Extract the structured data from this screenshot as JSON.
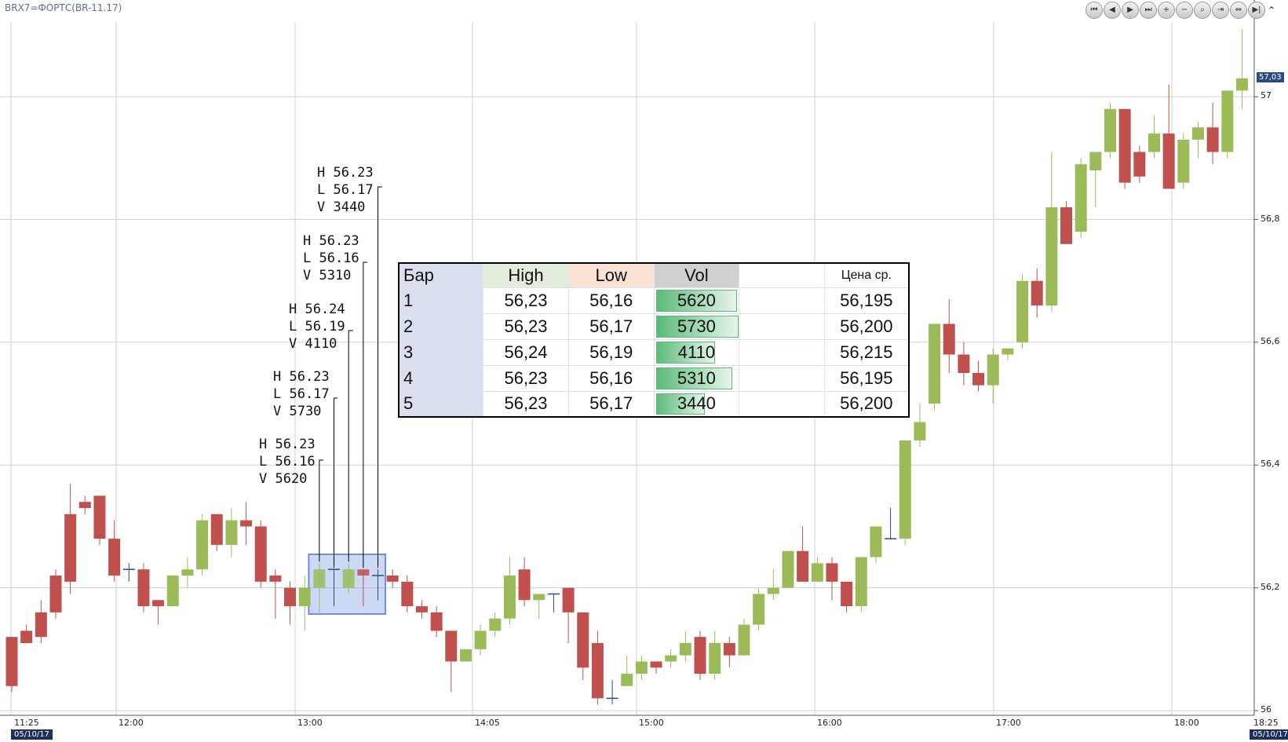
{
  "title": "BRX7=ФОРТС(BR-11.17)",
  "toolbar": {
    "buttons": [
      "first-icon",
      "prev-icon",
      "next-icon",
      "last-icon",
      "zoom-in-icon",
      "zoom-out-icon",
      "zoom-fit-icon",
      "compress-icon",
      "expand-icon",
      "end-icon"
    ],
    "collapse_glyph": "⌃"
  },
  "price_axis": [
    "57",
    "56,8",
    "56,6",
    "56,4",
    "56,2",
    "56"
  ],
  "current_price": "57,03",
  "time_axis": [
    "11:25",
    "12:00",
    "13:00",
    "14:05",
    "15:00",
    "16:00",
    "17:00",
    "18:00",
    "18:25"
  ],
  "date_left": "05/10/17",
  "date_right": "05/10/17",
  "annotations": [
    {
      "h": "H 56.23",
      "l": "L 56.16",
      "v": "V 5620"
    },
    {
      "h": "H 56.23",
      "l": "L 56.17",
      "v": "V 5730"
    },
    {
      "h": "H 56.24",
      "l": "L 56.19",
      "v": "V 4110"
    },
    {
      "h": "H 56.23",
      "l": "L 56.16",
      "v": "V 5310"
    },
    {
      "h": "H 56.23",
      "l": "L 56.17",
      "v": "V 3440"
    }
  ],
  "table": {
    "headers": {
      "bar": "Бар",
      "high": "High",
      "low": "Low",
      "vol": "Vol",
      "blank": "",
      "avg": "Цена ср."
    },
    "rows": [
      {
        "bar": "1",
        "high": "56,23",
        "low": "56,16",
        "vol": "5620",
        "avg": "56,195",
        "vol_fraction": 0.98
      },
      {
        "bar": "2",
        "high": "56,23",
        "low": "56,17",
        "vol": "5730",
        "avg": "56,200",
        "vol_fraction": 1.0
      },
      {
        "bar": "3",
        "high": "56,24",
        "low": "56,19",
        "vol": "4110",
        "avg": "56,215",
        "vol_fraction": 0.717
      },
      {
        "bar": "4",
        "high": "56,23",
        "low": "56,16",
        "vol": "5310",
        "avg": "56,195",
        "vol_fraction": 0.927
      },
      {
        "bar": "5",
        "high": "56,23",
        "low": "56,17",
        "vol": "3440",
        "avg": "56,200",
        "vol_fraction": 0.6
      }
    ]
  },
  "colors": {
    "up": "#9bbb59",
    "down": "#c0504d",
    "doji": "#2a4a86",
    "grid": "#d0d0d0",
    "selection": "#6f8fe0"
  },
  "chart_data": {
    "type": "candlestick",
    "ylim": [
      56.0,
      57.1
    ],
    "candles": [
      [
        56.12,
        56.04,
        56.03,
        56.12
      ],
      [
        56.13,
        56.11,
        56.11,
        56.14
      ],
      [
        56.16,
        56.12,
        56.11,
        56.18
      ],
      [
        56.22,
        56.16,
        56.15,
        56.23
      ],
      [
        56.32,
        56.21,
        56.19,
        56.37
      ],
      [
        56.34,
        56.33,
        56.32,
        56.35
      ],
      [
        56.35,
        56.28,
        56.27,
        56.35
      ],
      [
        56.28,
        56.22,
        56.21,
        56.31
      ],
      [
        56.23,
        56.23,
        56.21,
        56.24
      ],
      [
        56.23,
        56.17,
        56.16,
        56.24
      ],
      [
        56.18,
        56.17,
        56.14,
        56.18
      ],
      [
        56.17,
        56.22,
        56.17,
        56.22
      ],
      [
        56.22,
        56.23,
        56.2,
        56.25
      ],
      [
        56.23,
        56.31,
        56.22,
        56.32
      ],
      [
        56.32,
        56.27,
        56.26,
        56.32
      ],
      [
        56.27,
        56.31,
        56.25,
        56.33
      ],
      [
        56.31,
        56.3,
        56.27,
        56.34
      ],
      [
        56.3,
        56.21,
        56.2,
        56.31
      ],
      [
        56.22,
        56.21,
        56.15,
        56.23
      ],
      [
        56.2,
        56.17,
        56.14,
        56.21
      ],
      [
        56.17,
        56.2,
        56.13,
        56.22
      ],
      [
        56.2,
        56.23,
        56.16,
        56.24
      ],
      [
        56.23,
        56.23,
        56.17,
        56.23
      ],
      [
        56.2,
        56.23,
        56.19,
        56.24
      ],
      [
        56.23,
        56.22,
        56.17,
        56.23
      ],
      [
        56.22,
        56.22,
        56.18,
        56.23
      ],
      [
        56.22,
        56.21,
        56.2,
        56.23
      ],
      [
        56.21,
        56.17,
        56.16,
        56.22
      ],
      [
        56.17,
        56.16,
        56.15,
        56.18
      ],
      [
        56.16,
        56.13,
        56.12,
        56.17
      ],
      [
        56.13,
        56.08,
        56.03,
        56.13
      ],
      [
        56.08,
        56.1,
        56.08,
        56.1
      ],
      [
        56.1,
        56.13,
        56.09,
        56.14
      ],
      [
        56.13,
        56.15,
        56.12,
        56.16
      ],
      [
        56.15,
        56.22,
        56.14,
        56.25
      ],
      [
        56.23,
        56.18,
        56.17,
        56.25
      ],
      [
        56.18,
        56.19,
        56.15,
        56.19
      ],
      [
        56.19,
        56.19,
        56.16,
        56.19
      ],
      [
        56.2,
        56.16,
        56.11,
        56.2
      ],
      [
        56.16,
        56.07,
        56.05,
        56.16
      ],
      [
        56.11,
        56.02,
        56.01,
        56.13
      ],
      [
        56.02,
        56.02,
        56.01,
        56.05
      ],
      [
        56.04,
        56.06,
        56.04,
        56.09
      ],
      [
        56.06,
        56.08,
        56.05,
        56.09
      ],
      [
        56.08,
        56.07,
        56.06,
        56.08
      ],
      [
        56.08,
        56.09,
        56.07,
        56.1
      ],
      [
        56.09,
        56.11,
        56.08,
        56.13
      ],
      [
        56.12,
        56.06,
        56.05,
        56.13
      ],
      [
        56.06,
        56.11,
        56.05,
        56.13
      ],
      [
        56.11,
        56.09,
        56.07,
        56.12
      ],
      [
        56.09,
        56.14,
        56.09,
        56.15
      ],
      [
        56.14,
        56.19,
        56.13,
        56.2
      ],
      [
        56.19,
        56.2,
        56.18,
        56.23
      ],
      [
        56.2,
        56.26,
        56.2,
        56.26
      ],
      [
        56.26,
        56.21,
        56.21,
        56.3
      ],
      [
        56.21,
        56.24,
        56.21,
        56.25
      ],
      [
        56.24,
        56.21,
        56.18,
        56.25
      ],
      [
        56.21,
        56.17,
        56.16,
        56.21
      ],
      [
        56.17,
        56.25,
        56.16,
        56.25
      ],
      [
        56.25,
        56.3,
        56.24,
        56.3
      ],
      [
        56.28,
        56.28,
        56.28,
        56.33
      ],
      [
        56.28,
        56.44,
        56.27,
        56.44
      ],
      [
        56.44,
        56.47,
        56.43,
        56.5
      ],
      [
        56.5,
        56.63,
        56.49,
        56.63
      ],
      [
        56.63,
        56.58,
        56.55,
        56.67
      ],
      [
        56.58,
        56.55,
        56.53,
        56.6
      ],
      [
        56.55,
        56.53,
        56.52,
        56.57
      ],
      [
        56.53,
        56.58,
        56.5,
        56.59
      ],
      [
        56.58,
        56.59,
        56.57,
        56.59
      ],
      [
        56.6,
        56.7,
        56.59,
        56.71
      ],
      [
        56.7,
        56.66,
        56.64,
        56.72
      ],
      [
        56.66,
        56.82,
        56.65,
        56.91
      ],
      [
        56.82,
        56.76,
        56.76,
        56.83
      ],
      [
        56.78,
        56.89,
        56.77,
        56.9
      ],
      [
        56.88,
        56.91,
        56.82,
        56.91
      ],
      [
        56.91,
        56.98,
        56.9,
        56.99
      ],
      [
        56.98,
        56.86,
        56.85,
        56.98
      ],
      [
        56.91,
        56.87,
        56.86,
        56.92
      ],
      [
        56.91,
        56.94,
        56.9,
        56.97
      ],
      [
        56.94,
        56.85,
        56.85,
        57.02
      ],
      [
        56.86,
        56.93,
        56.85,
        56.94
      ],
      [
        56.93,
        56.95,
        56.9,
        56.96
      ],
      [
        56.95,
        56.91,
        56.89,
        56.99
      ],
      [
        56.91,
        57.01,
        56.9,
        57.01
      ],
      [
        57.01,
        57.03,
        56.98,
        57.11
      ]
    ]
  }
}
